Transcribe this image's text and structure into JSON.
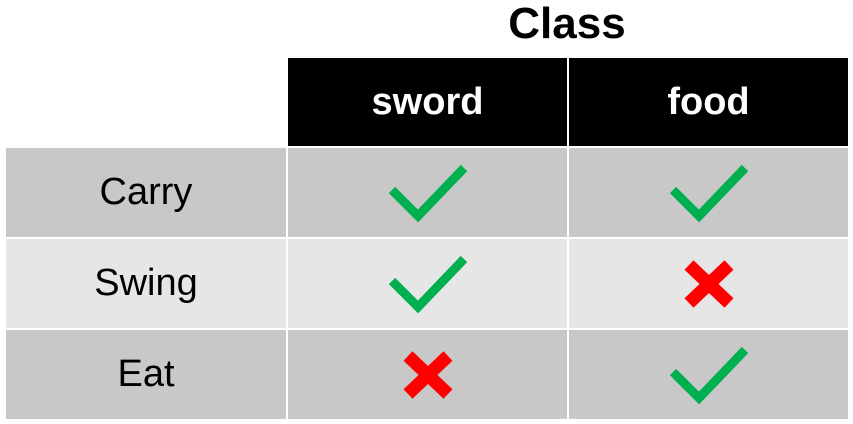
{
  "title": "Class",
  "columns": [
    "sword",
    "food"
  ],
  "rows": [
    {
      "label": "Carry",
      "values": [
        "check",
        "check"
      ]
    },
    {
      "label": "Swing",
      "values": [
        "check",
        "cross"
      ]
    },
    {
      "label": "Eat",
      "values": [
        "cross",
        "check"
      ]
    }
  ],
  "colors": {
    "header_bg": "#000000",
    "header_text": "#ffffff",
    "row_dark": "#c8c8c8",
    "row_light": "#e6e6e6",
    "check": "#00b050",
    "cross": "#ff0000"
  }
}
